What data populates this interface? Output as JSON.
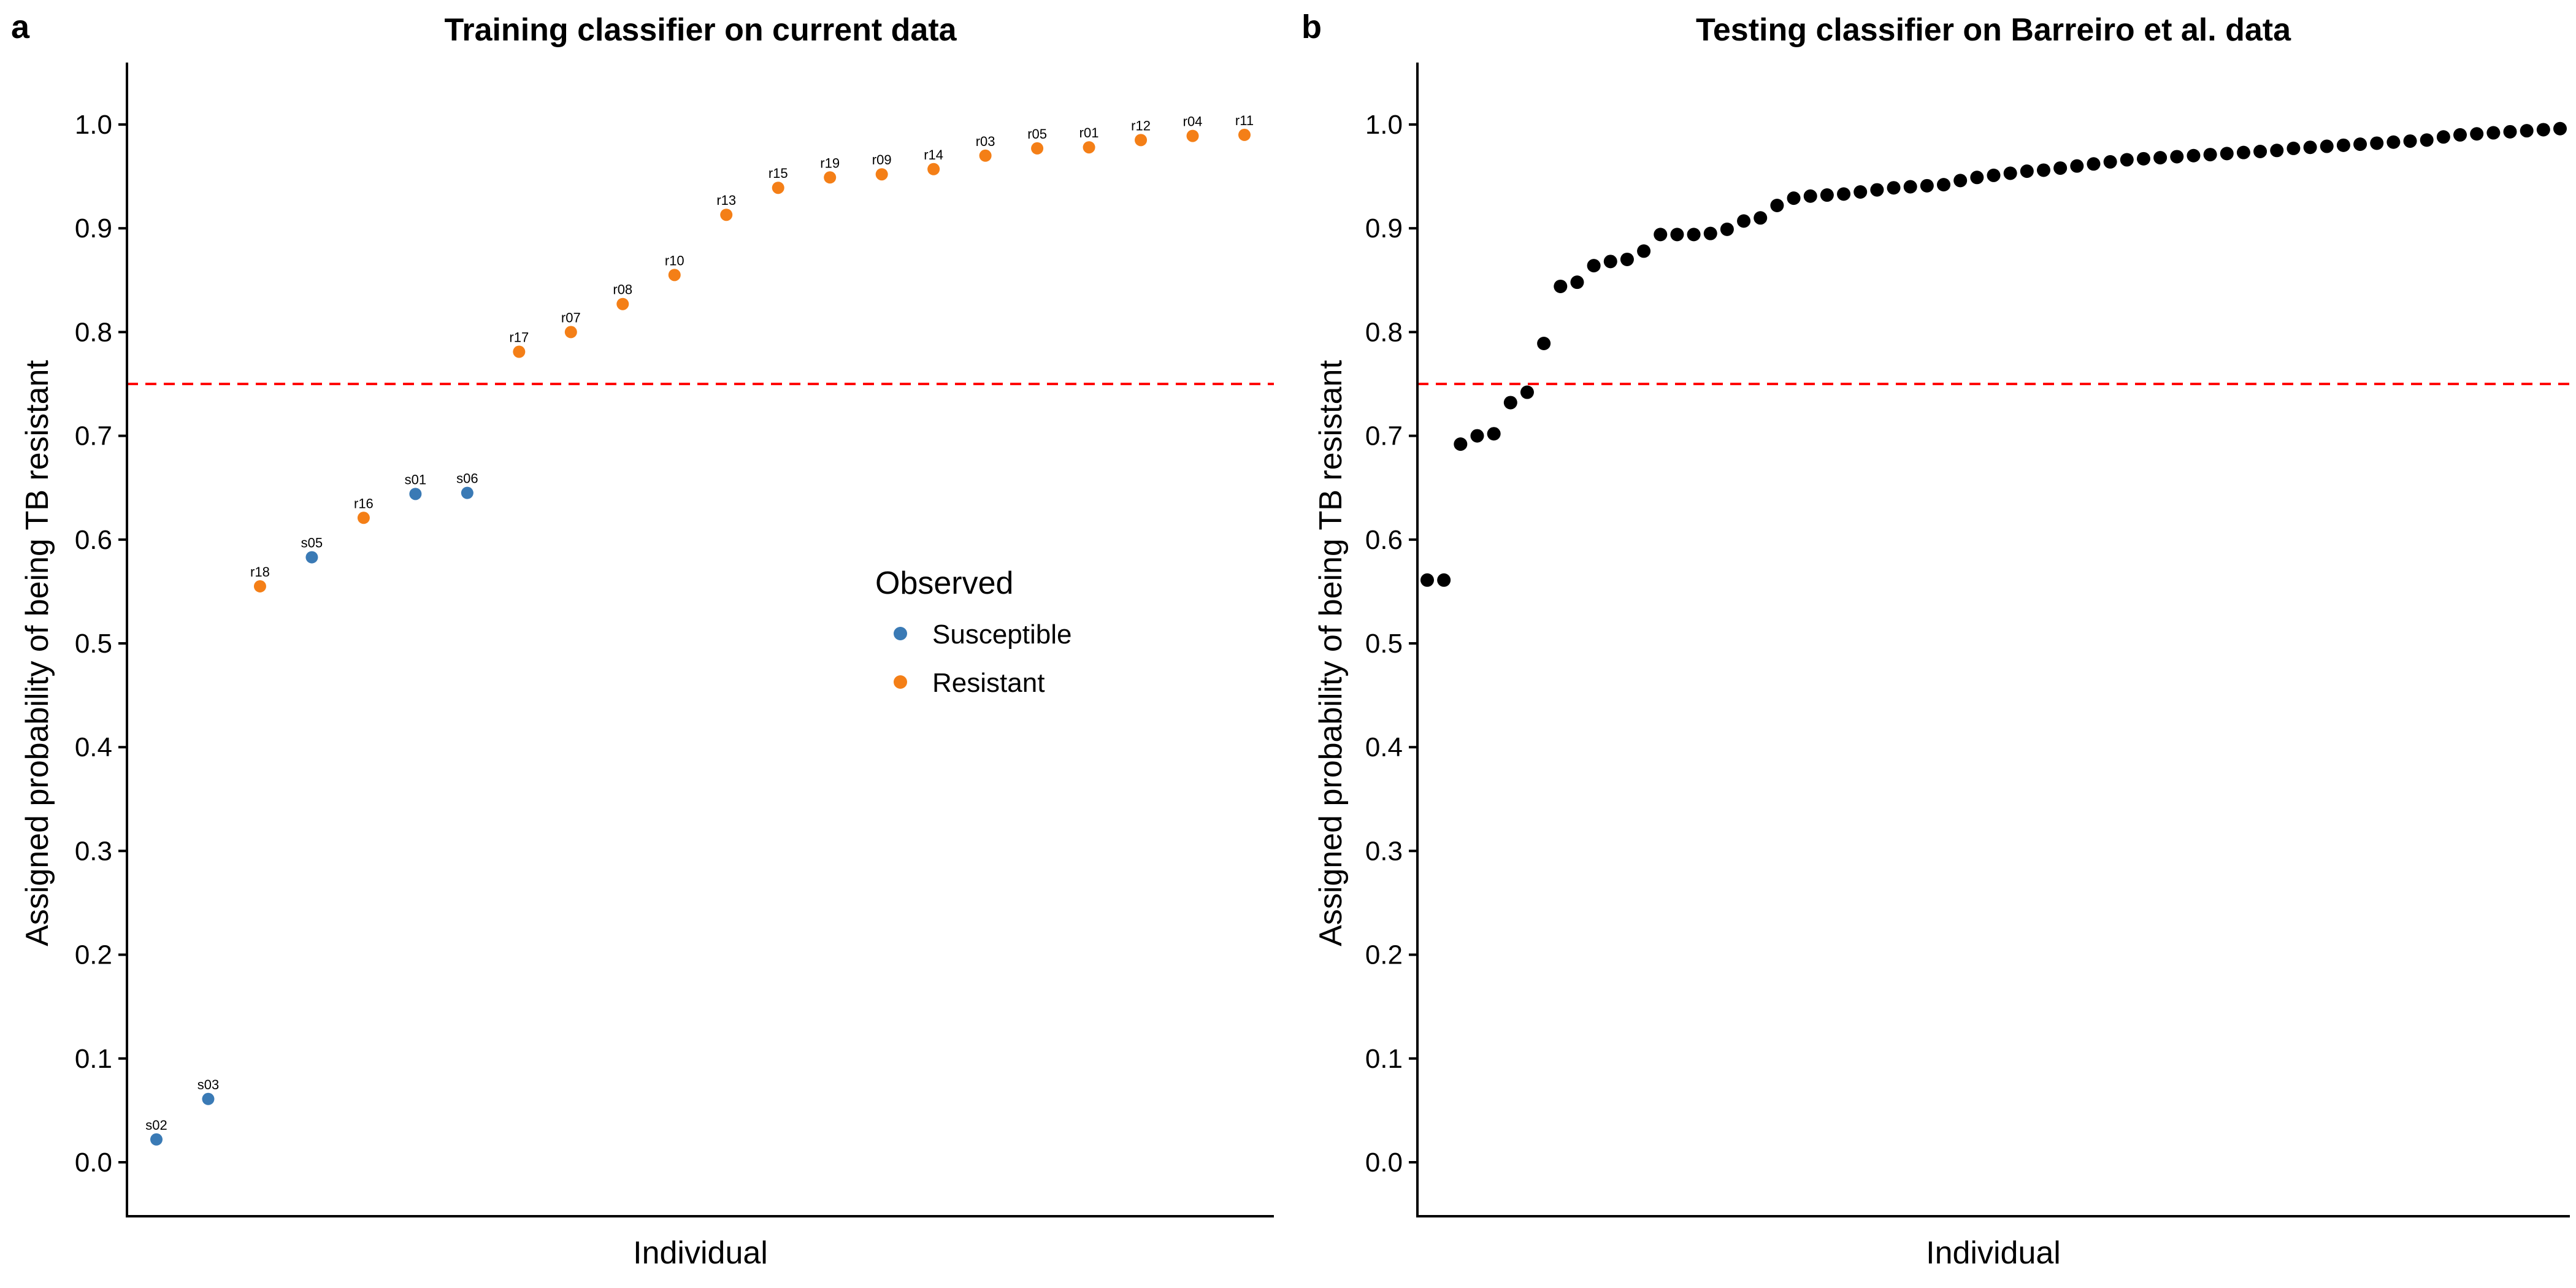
{
  "threshold": 0.75,
  "colors": {
    "Susceptible": "#3a7ab5",
    "Resistant": "#f47f17",
    "test_points": "#000000",
    "threshold_line": "#ff0000"
  },
  "chart_data": [
    {
      "panel": "a",
      "type": "scatter",
      "title": "Training classifier on current data",
      "xlabel": "Individual",
      "ylabel": "Assigned probability of being TB resistant",
      "ylim": [
        -0.05,
        1.06
      ],
      "yticks": [
        0.0,
        0.1,
        0.2,
        0.3,
        0.4,
        0.5,
        0.6,
        0.7,
        0.8,
        0.9,
        1.0
      ],
      "ytick_labels": [
        "0.0",
        "0.1",
        "0.2",
        "0.3",
        "0.4",
        "0.5",
        "0.6",
        "0.7",
        "0.8",
        "0.9",
        "1.0"
      ],
      "grid": false,
      "threshold": 0.75,
      "legend": {
        "title": "Observed",
        "placement": "right-center",
        "entries": [
          {
            "label": "Susceptible",
            "color": "#3a7ab5"
          },
          {
            "label": "Resistant",
            "color": "#f47f17"
          }
        ]
      },
      "points": [
        {
          "label": "s02",
          "y": 0.022,
          "observed": "Susceptible"
        },
        {
          "label": "s03",
          "y": 0.061,
          "observed": "Susceptible"
        },
        {
          "label": "r18",
          "y": 0.555,
          "observed": "Resistant"
        },
        {
          "label": "s05",
          "y": 0.583,
          "observed": "Susceptible"
        },
        {
          "label": "r16",
          "y": 0.621,
          "observed": "Resistant"
        },
        {
          "label": "s01",
          "y": 0.644,
          "observed": "Susceptible"
        },
        {
          "label": "s06",
          "y": 0.645,
          "observed": "Susceptible"
        },
        {
          "label": "r17",
          "y": 0.781,
          "observed": "Resistant"
        },
        {
          "label": "r07",
          "y": 0.8,
          "observed": "Resistant"
        },
        {
          "label": "r08",
          "y": 0.827,
          "observed": "Resistant"
        },
        {
          "label": "r10",
          "y": 0.855,
          "observed": "Resistant"
        },
        {
          "label": "r13",
          "y": 0.913,
          "observed": "Resistant"
        },
        {
          "label": "r15",
          "y": 0.939,
          "observed": "Resistant"
        },
        {
          "label": "r19",
          "y": 0.949,
          "observed": "Resistant"
        },
        {
          "label": "r09",
          "y": 0.952,
          "observed": "Resistant"
        },
        {
          "label": "r14",
          "y": 0.957,
          "observed": "Resistant"
        },
        {
          "label": "r03",
          "y": 0.97,
          "observed": "Resistant"
        },
        {
          "label": "r05",
          "y": 0.977,
          "observed": "Resistant"
        },
        {
          "label": "r01",
          "y": 0.978,
          "observed": "Resistant"
        },
        {
          "label": "r12",
          "y": 0.985,
          "observed": "Resistant"
        },
        {
          "label": "r04",
          "y": 0.989,
          "observed": "Resistant"
        },
        {
          "label": "r11",
          "y": 0.99,
          "observed": "Resistant"
        }
      ]
    },
    {
      "panel": "b",
      "type": "scatter",
      "title": "Testing classifier on Barreiro et al. data",
      "xlabel": "Individual",
      "ylabel": "Assigned probability of being TB resistant",
      "ylim": [
        -0.05,
        1.06
      ],
      "yticks": [
        0.0,
        0.1,
        0.2,
        0.3,
        0.4,
        0.5,
        0.6,
        0.7,
        0.8,
        0.9,
        1.0
      ],
      "ytick_labels": [
        "0.0",
        "0.1",
        "0.2",
        "0.3",
        "0.4",
        "0.5",
        "0.6",
        "0.7",
        "0.8",
        "0.9",
        "1.0"
      ],
      "grid": false,
      "threshold": 0.75,
      "values": [
        0.561,
        0.561,
        0.692,
        0.7,
        0.702,
        0.732,
        0.742,
        0.789,
        0.844,
        0.848,
        0.864,
        0.868,
        0.87,
        0.878,
        0.894,
        0.894,
        0.894,
        0.895,
        0.899,
        0.907,
        0.91,
        0.922,
        0.929,
        0.931,
        0.932,
        0.933,
        0.935,
        0.937,
        0.939,
        0.94,
        0.941,
        0.942,
        0.946,
        0.949,
        0.951,
        0.953,
        0.955,
        0.956,
        0.958,
        0.96,
        0.962,
        0.964,
        0.966,
        0.967,
        0.968,
        0.969,
        0.97,
        0.971,
        0.972,
        0.973,
        0.974,
        0.975,
        0.977,
        0.978,
        0.979,
        0.98,
        0.981,
        0.982,
        0.983,
        0.984,
        0.985,
        0.988,
        0.99,
        0.991,
        0.992,
        0.993,
        0.994,
        0.995,
        0.996
      ]
    }
  ]
}
